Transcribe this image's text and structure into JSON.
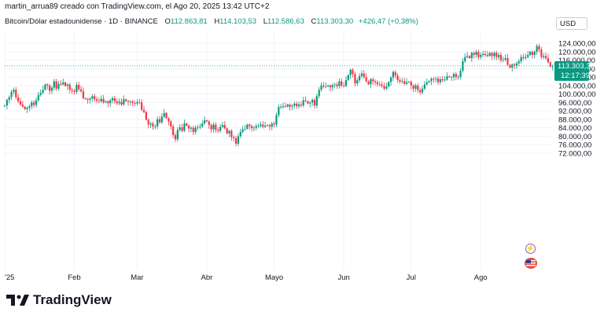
{
  "header": {
    "author_line": "martin_arrua89 creado con TradingView.com, el Ago 20, 2025 13:42 UTC+2"
  },
  "symbol": {
    "name": "Bitcoin/Dólar estadounidense · 1D · BINANCE",
    "open_label": "O",
    "open": "112.863,81",
    "high_label": "H",
    "high": "114.103,53",
    "low_label": "L",
    "low": "112.586,63",
    "close_label": "C",
    "close": "113.303,30",
    "change": "+426,47 (+0,38%)"
  },
  "currency": "USD",
  "price_tag": {
    "price": "113.303,30",
    "countdown": "12:17:39",
    "color": "#089981"
  },
  "brand": "TradingView",
  "icons": {
    "lightning": "lightning-icon",
    "flag": "us-flag-icon"
  },
  "colors": {
    "up": "#089981",
    "down": "#f23645",
    "grid": "#f0f3fa"
  },
  "chart_data": {
    "type": "candlestick",
    "title": "",
    "xlabel": "",
    "ylabel": "",
    "ylim": [
      68000,
      128000
    ],
    "y_ticks": [
      "124.000,00",
      "120.000,00",
      "116.000,00",
      "112.000,00",
      "108.000,00",
      "104.000,00",
      "100.000,00",
      "96.000,00",
      "92.000,00",
      "88.000,00",
      "84.000,00",
      "80.000,00",
      "76.000,00",
      "72.000,00"
    ],
    "y_tick_values": [
      124000,
      120000,
      116000,
      112000,
      108000,
      104000,
      100000,
      96000,
      92000,
      88000,
      84000,
      80000,
      76000,
      72000
    ],
    "x_ticks": [
      "'25",
      "Feb",
      "Mar",
      "Abr",
      "Mayo",
      "Jun",
      "Jul",
      "Ago"
    ],
    "x_tick_days": [
      0,
      31,
      59,
      90,
      120,
      151,
      181,
      212
    ],
    "last_price": 113303.3,
    "closes": [
      94500,
      97200,
      98500,
      101000,
      102000,
      98400,
      96500,
      95000,
      94000,
      92800,
      93500,
      94200,
      96000,
      94800,
      97000,
      99500,
      100500,
      102000,
      104500,
      104000,
      101500,
      103000,
      106000,
      102500,
      104800,
      104500,
      105500,
      103800,
      104500,
      102000,
      101500,
      101000,
      104300,
      102200,
      101300,
      98000,
      97600,
      97200,
      97800,
      99000,
      97500,
      96800,
      96500,
      97700,
      96000,
      96500,
      95600,
      97000,
      98000,
      96500,
      95600,
      96300,
      95000,
      97500,
      96600,
      96200,
      96400,
      95700,
      95500,
      96200,
      96000,
      92500,
      91500,
      87800,
      85500,
      86000,
      84500,
      84600,
      88000,
      86600,
      89200,
      91000,
      88500,
      87000,
      84600,
      80500,
      78500,
      83000,
      84200,
      82500,
      86000,
      85000,
      83600,
      84000,
      82000,
      84000,
      84200,
      84600,
      86000,
      87500,
      87000,
      85300,
      83200,
      85500,
      83000,
      82500,
      84400,
      85300,
      83700,
      81300,
      82500,
      79500,
      79000,
      76400,
      80000,
      82000,
      83200,
      83500,
      85500,
      84800,
      83800,
      84000,
      84800,
      84900,
      85500,
      84400,
      85000,
      85200,
      84500,
      86000,
      85500,
      90000,
      93800,
      93800,
      94200,
      94000,
      95000,
      94000,
      94500,
      95400,
      94200,
      95000,
      94500,
      97000,
      96600,
      95500,
      96000,
      97200,
      94500,
      99000,
      102000,
      104000,
      103500,
      103600,
      104000,
      103200,
      104200,
      104500,
      103700,
      106000,
      104000,
      103800,
      106600,
      109000,
      111500,
      109500,
      105000,
      106500,
      108500,
      109700,
      108000,
      106000,
      104600,
      107000,
      106000,
      105500,
      104700,
      104500,
      103800,
      102500,
      103500,
      105700,
      107800,
      110400,
      108800,
      106600,
      105800,
      106100,
      104800,
      105600,
      105800,
      104000,
      102500,
      104000,
      101800,
      100800,
      102500,
      104500,
      105500,
      106100,
      107300,
      107000,
      107300,
      105600,
      107000,
      106500,
      106800,
      108400,
      108000,
      108000,
      109500,
      108000,
      108000,
      111000,
      115500,
      117500,
      118000,
      117000,
      119500,
      118500,
      120000,
      117500,
      118500,
      119000,
      118500,
      118000,
      119500,
      118000,
      119500,
      117500,
      118500,
      116000,
      116300,
      117000,
      113800,
      112500,
      114000,
      113500,
      114500,
      115500,
      117500,
      117000,
      117500,
      118500,
      120000,
      118500,
      120000,
      122700,
      121000,
      117500,
      118000,
      117000,
      115000,
      113000,
      113303.3
    ]
  }
}
